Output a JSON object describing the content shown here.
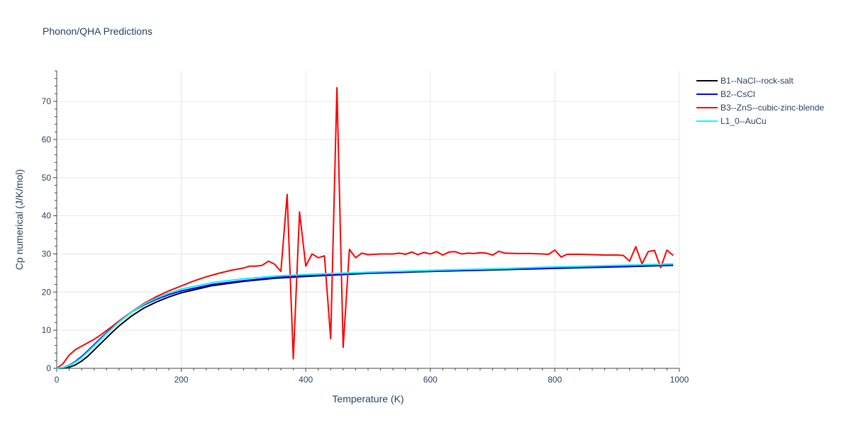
{
  "chart_title": "Phonon/QHA Predictions",
  "chart_data": {
    "type": "line",
    "title": "Phonon/QHA Predictions",
    "xlabel": "Temperature (K)",
    "ylabel": "Cp numerical (J/K/mol)",
    "xlim": [
      0,
      1000
    ],
    "ylim": [
      0,
      78
    ],
    "x_ticks": [
      0,
      200,
      400,
      600,
      800,
      1000
    ],
    "y_ticks": [
      0,
      10,
      20,
      30,
      40,
      50,
      60,
      70
    ],
    "grid": true,
    "legend_position": "top-right",
    "series": [
      {
        "name": "B1--NaCl--rock-salt",
        "color": "#000000",
        "x": [
          0,
          10,
          20,
          30,
          40,
          50,
          60,
          70,
          80,
          90,
          100,
          120,
          140,
          160,
          180,
          200,
          250,
          300,
          350,
          400,
          450,
          500,
          600,
          700,
          800,
          900,
          990
        ],
        "y": [
          0,
          0.05,
          0.3,
          0.9,
          1.9,
          3.2,
          4.8,
          6.4,
          8.0,
          9.6,
          11.1,
          13.7,
          15.8,
          17.4,
          18.7,
          19.8,
          21.7,
          22.8,
          23.6,
          24.1,
          24.5,
          24.9,
          25.4,
          25.8,
          26.2,
          26.6,
          27.0
        ]
      },
      {
        "name": "B2--CsCl",
        "color": "#0000ff",
        "x": [
          0,
          10,
          20,
          30,
          40,
          50,
          60,
          70,
          80,
          90,
          100,
          120,
          140,
          160,
          180,
          200,
          250,
          300,
          350,
          400,
          450,
          500,
          600,
          700,
          800,
          900,
          990
        ],
        "y": [
          0,
          0.2,
          0.8,
          1.8,
          3.1,
          4.6,
          6.2,
          7.8,
          9.3,
          10.8,
          12.2,
          14.7,
          16.6,
          18.1,
          19.3,
          20.3,
          22.0,
          23.0,
          23.8,
          24.3,
          24.6,
          25.0,
          25.5,
          25.9,
          26.3,
          26.7,
          27.1
        ]
      },
      {
        "name": "B3--ZnS--cubic-zinc-blende",
        "color": "#ff0000",
        "x": [
          0,
          10,
          20,
          30,
          40,
          50,
          60,
          70,
          80,
          90,
          100,
          120,
          140,
          160,
          180,
          200,
          220,
          240,
          260,
          280,
          300,
          310,
          320,
          330,
          340,
          350,
          360,
          370,
          380,
          390,
          400,
          410,
          420,
          430,
          440,
          450,
          460,
          470,
          480,
          490,
          500,
          520,
          540,
          550,
          560,
          570,
          580,
          590,
          600,
          610,
          620,
          630,
          640,
          650,
          660,
          670,
          680,
          690,
          700,
          710,
          720,
          740,
          760,
          780,
          790,
          800,
          810,
          820,
          840,
          860,
          880,
          900,
          910,
          920,
          930,
          940,
          950,
          960,
          970,
          980,
          990
        ],
        "y": [
          0,
          1.2,
          3.5,
          4.9,
          5.8,
          6.7,
          7.6,
          8.7,
          9.9,
          11.1,
          12.4,
          14.8,
          17.0,
          18.8,
          20.3,
          21.6,
          22.9,
          24.0,
          24.9,
          25.7,
          26.3,
          26.8,
          26.8,
          27.0,
          28.1,
          27.3,
          25.4,
          45.6,
          2.5,
          41.0,
          26.8,
          30.0,
          29.0,
          29.5,
          7.8,
          73.6,
          5.5,
          31.2,
          29.0,
          30.2,
          29.8,
          30.0,
          30.0,
          30.2,
          29.9,
          30.5,
          29.8,
          30.4,
          30.0,
          30.6,
          29.7,
          30.5,
          30.6,
          30.0,
          30.2,
          30.1,
          30.3,
          30.2,
          29.7,
          30.7,
          30.2,
          30.1,
          30.1,
          30.0,
          29.9,
          31.0,
          29.2,
          29.9,
          29.9,
          29.8,
          29.7,
          29.7,
          29.6,
          28.1,
          31.9,
          27.4,
          30.6,
          30.9,
          26.4,
          31.0,
          29.6
        ]
      },
      {
        "name": "L1_0--AuCu",
        "color": "#00ffff",
        "x": [
          0,
          10,
          20,
          30,
          40,
          50,
          60,
          70,
          80,
          90,
          100,
          120,
          140,
          160,
          180,
          200,
          250,
          300,
          350,
          400,
          450,
          500,
          600,
          700,
          800,
          900,
          990
        ],
        "y": [
          0,
          0.2,
          0.7,
          1.6,
          2.8,
          4.3,
          5.9,
          7.5,
          9.1,
          10.6,
          12.1,
          14.7,
          16.8,
          18.4,
          19.7,
          20.8,
          22.5,
          23.5,
          24.2,
          24.6,
          24.9,
          25.2,
          25.7,
          26.1,
          26.6,
          27.0,
          27.4
        ]
      }
    ]
  }
}
